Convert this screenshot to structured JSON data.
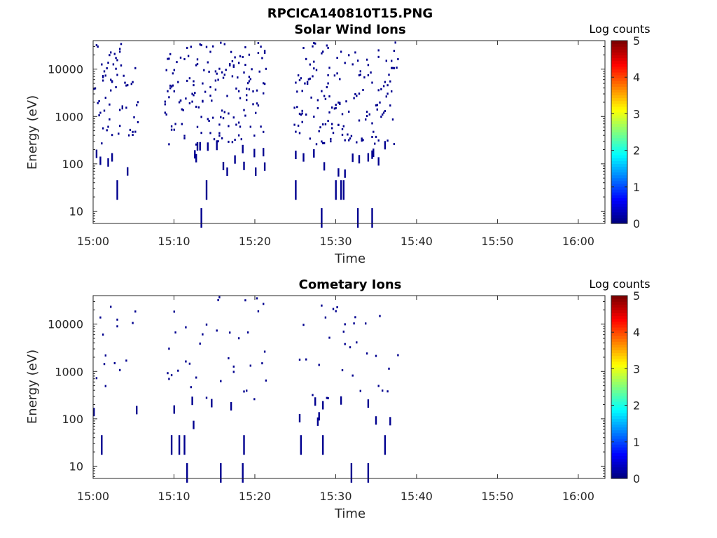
{
  "figure_title": "RPCICA140810T15.PNG",
  "chart_data": [
    {
      "type": "heatmap",
      "title": "Solar Wind Ions",
      "xlabel": "Time",
      "ylabel": "Energy (eV)",
      "x_tick_labels": [
        "15:00",
        "15:10",
        "15:20",
        "15:30",
        "15:40",
        "15:50",
        "16:00"
      ],
      "x_ticks_min": [
        0,
        10,
        20,
        30,
        40,
        50,
        60
      ],
      "xlim_min": [
        0,
        63.3
      ],
      "y_scale": "log",
      "ylim": [
        5.5,
        40000
      ],
      "y_tick_labels": [
        "10",
        "100",
        "1000",
        "10000"
      ],
      "y_ticks": [
        10,
        100,
        1000,
        10000
      ],
      "colorbar": {
        "label": "Log counts",
        "range": [
          0,
          5
        ],
        "tick_labels": [
          "0",
          "1",
          "2",
          "3",
          "4",
          "5"
        ],
        "colormap": "jet"
      },
      "active_intervals_min": [
        [
          0,
          5.6
        ],
        [
          8.8,
          21.4
        ],
        [
          24.8,
          37.6
        ]
      ],
      "counts_color": "#00008f",
      "note_values": "sparse single-count detections (log counts ≈ 0) from ~7 eV to ~40000 eV during active intervals"
    },
    {
      "type": "heatmap",
      "title": "Cometary Ions",
      "xlabel": "Time",
      "ylabel": "Energy (eV)",
      "x_tick_labels": [
        "15:00",
        "15:10",
        "15:20",
        "15:30",
        "15:40",
        "15:50",
        "16:00"
      ],
      "x_ticks_min": [
        0,
        10,
        20,
        30,
        40,
        50,
        60
      ],
      "xlim_min": [
        0,
        63.3
      ],
      "y_scale": "log",
      "ylim": [
        5.5,
        40000
      ],
      "y_tick_labels": [
        "10",
        "100",
        "1000",
        "10000"
      ],
      "y_ticks": [
        10,
        100,
        1000,
        10000
      ],
      "colorbar": {
        "label": "Log counts",
        "range": [
          0,
          5
        ],
        "tick_labels": [
          "0",
          "1",
          "2",
          "3",
          "4",
          "5"
        ],
        "colormap": "jet"
      },
      "active_intervals_min": [
        [
          0,
          5.6
        ],
        [
          8.8,
          21.4
        ],
        [
          24.8,
          37.6
        ]
      ],
      "counts_color": "#00008f",
      "note_values": "sparser single-count detections (log counts ≈ 0) from ~7 eV to ~35000 eV during active intervals"
    }
  ]
}
